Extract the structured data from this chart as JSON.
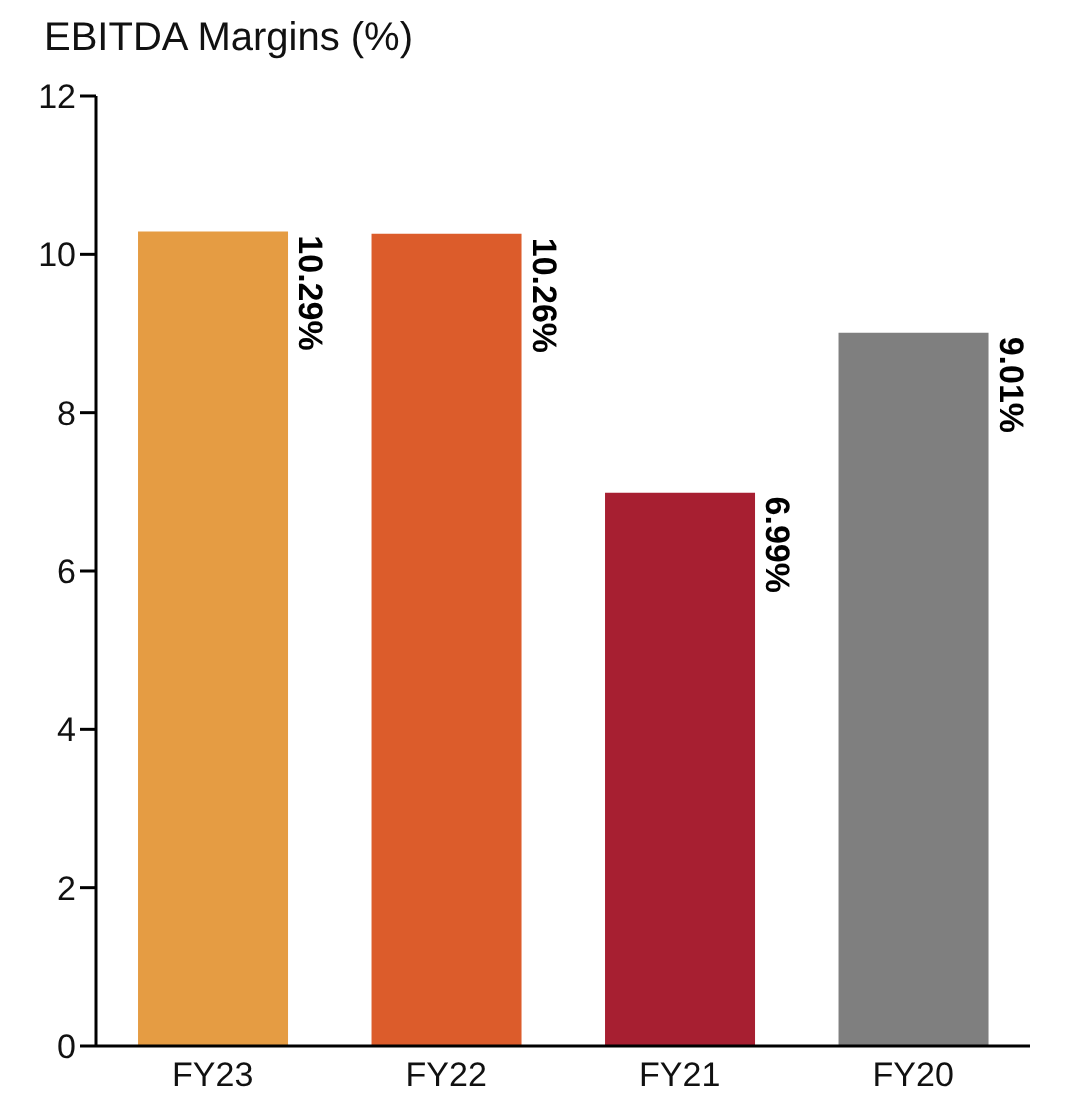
{
  "chart_data": {
    "type": "bar",
    "title": "EBITDA Margins (%)",
    "categories": [
      "FY23",
      "FY22",
      "FY21",
      "FY20"
    ],
    "values": [
      10.29,
      10.26,
      6.99,
      9.01
    ],
    "colors": [
      "#e59c43",
      "#dc5c2b",
      "#a71f31",
      "#7f7f7f"
    ],
    "value_labels": [
      "10.29%",
      "10.26%",
      "6.99%",
      "9.01%"
    ],
    "ylim": [
      0,
      12
    ],
    "yticks": [
      0,
      2,
      4,
      6,
      8,
      10,
      12
    ],
    "grid": false,
    "legend": false
  }
}
